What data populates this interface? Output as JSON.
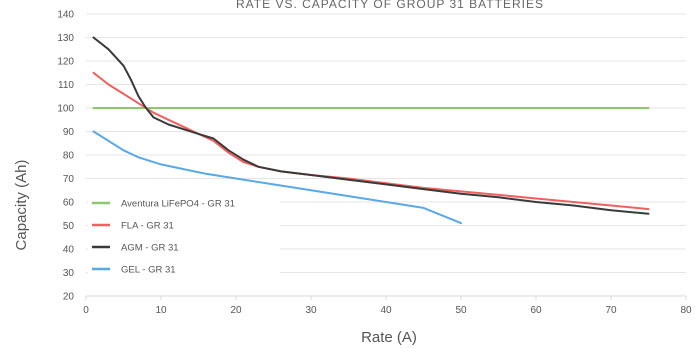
{
  "chart_data": {
    "type": "line",
    "title": "RATE VS. CAPACITY OF GROUP 31 BATTERIES",
    "xlabel": "Rate (A)",
    "ylabel": "Capacity (Ah)",
    "xlim": [
      0,
      80
    ],
    "ylim": [
      20,
      140
    ],
    "x_ticks": [
      "0",
      "10",
      "20",
      "30",
      "40",
      "50",
      "60",
      "70",
      "80"
    ],
    "y_ticks": [
      "20",
      "30",
      "40",
      "50",
      "60",
      "70",
      "80",
      "90",
      "100",
      "110",
      "120",
      "130",
      "140"
    ],
    "grid": "horizontal",
    "legend_position": "bottom-left",
    "series": [
      {
        "name": "Aventura LiFePO4 - GR 31",
        "color": "#8cc96b",
        "points": [
          [
            1,
            100
          ],
          [
            75,
            100
          ]
        ]
      },
      {
        "name": "FLA - GR 31",
        "color": "#f06060",
        "points": [
          [
            1,
            115
          ],
          [
            3,
            110
          ],
          [
            5,
            106
          ],
          [
            7,
            102
          ],
          [
            9,
            98
          ],
          [
            11,
            95
          ],
          [
            13,
            92
          ],
          [
            15,
            89
          ],
          [
            17,
            86
          ],
          [
            19,
            81
          ],
          [
            21,
            77
          ],
          [
            23,
            75
          ],
          [
            26,
            73
          ],
          [
            30,
            71.5
          ],
          [
            35,
            70
          ],
          [
            40,
            68
          ],
          [
            45,
            66
          ],
          [
            50,
            64.5
          ],
          [
            55,
            63
          ],
          [
            60,
            61.5
          ],
          [
            65,
            60
          ],
          [
            70,
            58.5
          ],
          [
            75,
            57
          ]
        ]
      },
      {
        "name": "AGM - GR 31",
        "color": "#3a3a3a",
        "points": [
          [
            1,
            130
          ],
          [
            3,
            125
          ],
          [
            5,
            118
          ],
          [
            6,
            112
          ],
          [
            7,
            105
          ],
          [
            8,
            100
          ],
          [
            9,
            96
          ],
          [
            11,
            93
          ],
          [
            13,
            91
          ],
          [
            15,
            89
          ],
          [
            17,
            87
          ],
          [
            19,
            82
          ],
          [
            21,
            78
          ],
          [
            23,
            75
          ],
          [
            26,
            73
          ],
          [
            30,
            71.5
          ],
          [
            35,
            69.5
          ],
          [
            40,
            67.5
          ],
          [
            45,
            65.5
          ],
          [
            50,
            63.5
          ],
          [
            55,
            62
          ],
          [
            60,
            60
          ],
          [
            65,
            58.5
          ],
          [
            70,
            56.5
          ],
          [
            75,
            55
          ]
        ]
      },
      {
        "name": "GEL - GR 31",
        "color": "#5aa8e6",
        "points": [
          [
            1,
            90
          ],
          [
            3,
            86
          ],
          [
            5,
            82
          ],
          [
            7,
            79
          ],
          [
            10,
            76
          ],
          [
            13,
            74
          ],
          [
            16,
            72
          ],
          [
            20,
            70
          ],
          [
            25,
            67.5
          ],
          [
            30,
            65
          ],
          [
            35,
            62.5
          ],
          [
            40,
            60
          ],
          [
            45,
            57.5
          ],
          [
            50,
            51
          ]
        ]
      }
    ]
  }
}
